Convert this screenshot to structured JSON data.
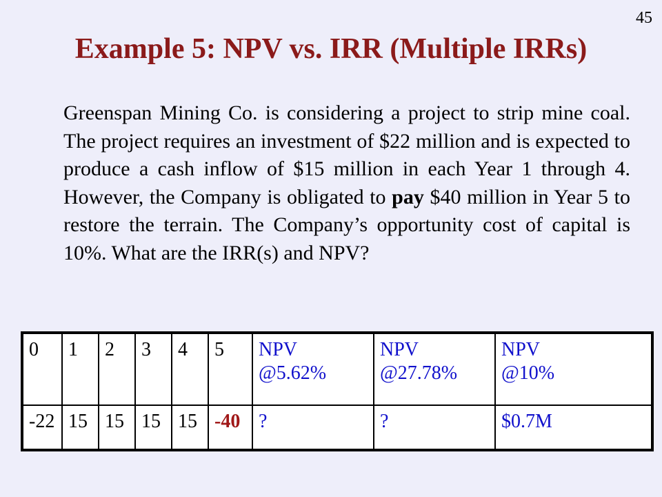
{
  "page_number": "45",
  "title": "Example 5: NPV vs. IRR (Multiple IRRs)",
  "body": {
    "part1": "Greenspan Mining Co. is considering a project to strip mine coal.  The project requires an investment of $22 million and is expected to produce a cash inflow of $15 million in each Year 1 through 4. However, the Company is obligated to ",
    "bold_word": "pay",
    "part2": " $40 million in Year 5 to restore the terrain.  The Company’s opportunity cost of capital is 10%.  What are the IRR(s) and NPV?"
  },
  "table": {
    "years": [
      "0",
      "1",
      "2",
      "3",
      "4",
      "5"
    ],
    "npv_headers": [
      {
        "label": "NPV",
        "rate": "@5.62%"
      },
      {
        "label": "NPV",
        "rate": "@27.78%"
      },
      {
        "label": "NPV",
        "rate": "@10%"
      }
    ],
    "cash_flows": [
      "-22",
      "15",
      "15",
      "15",
      "15",
      "-40"
    ],
    "npv_values": [
      "?",
      "?",
      "$0.7M"
    ]
  },
  "colors": {
    "background": "#eeeefa",
    "title": "#8b1a1a",
    "npv_text": "#1111cc",
    "negative_highlight": "#a01818"
  }
}
